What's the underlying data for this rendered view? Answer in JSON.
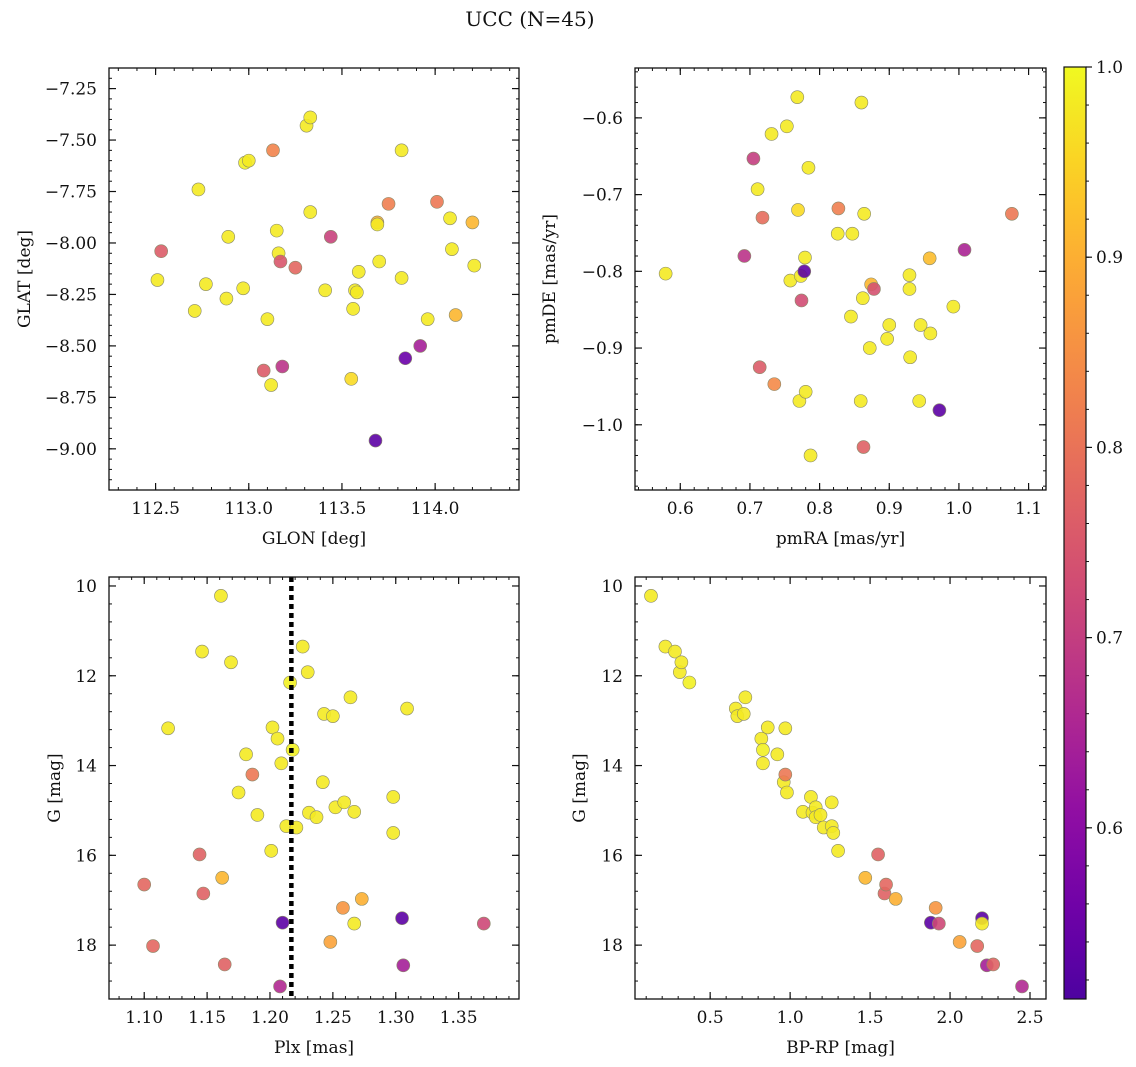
{
  "title": "UCC (N=45)",
  "colorbar": {
    "range": [
      0.51,
      1.0
    ],
    "ticks": [
      0.6,
      0.7,
      0.8,
      0.9,
      1.0
    ],
    "tick_labels": [
      "0.6",
      "0.7",
      "0.8",
      "0.9",
      "1.0"
    ],
    "colormap": "plasma"
  },
  "chart_data": [
    {
      "type": "scatter",
      "id": "glon-glat",
      "xlabel": "GLON [deg]",
      "ylabel": "GLAT [deg]",
      "xlim": [
        112.25,
        114.45
      ],
      "ylim": [
        -9.2,
        -7.15
      ],
      "y_inverted": false,
      "xticks": [
        112.5,
        113.0,
        113.5,
        114.0
      ],
      "xtick_labels": [
        "112.5",
        "113.0",
        "113.5",
        "114.0"
      ],
      "yticks": [
        -7.25,
        -7.5,
        -7.75,
        -8.0,
        -8.25,
        -8.5,
        -8.75,
        -9.0
      ],
      "ytick_labels": [
        "−7.25",
        "−7.50",
        "−7.75",
        "−8.00",
        "−8.25",
        "−8.50",
        "−8.75",
        "−9.00"
      ],
      "points": [
        {
          "x": 112.51,
          "y": -8.18,
          "c": 0.98
        },
        {
          "x": 112.53,
          "y": -8.04,
          "c": 0.76
        },
        {
          "x": 112.71,
          "y": -8.33,
          "c": 0.98
        },
        {
          "x": 112.73,
          "y": -7.74,
          "c": 0.98
        },
        {
          "x": 112.77,
          "y": -8.2,
          "c": 0.98
        },
        {
          "x": 112.88,
          "y": -8.27,
          "c": 0.98
        },
        {
          "x": 112.89,
          "y": -7.97,
          "c": 0.98
        },
        {
          "x": 112.97,
          "y": -8.22,
          "c": 0.98
        },
        {
          "x": 112.98,
          "y": -7.61,
          "c": 0.99
        },
        {
          "x": 113.0,
          "y": -7.6,
          "c": 0.98
        },
        {
          "x": 113.08,
          "y": -8.62,
          "c": 0.76
        },
        {
          "x": 113.1,
          "y": -8.37,
          "c": 0.98
        },
        {
          "x": 113.12,
          "y": -8.69,
          "c": 0.98
        },
        {
          "x": 113.13,
          "y": -7.55,
          "c": 0.83
        },
        {
          "x": 113.15,
          "y": -7.94,
          "c": 0.98
        },
        {
          "x": 113.16,
          "y": -8.05,
          "c": 0.98
        },
        {
          "x": 113.17,
          "y": -8.09,
          "c": 0.75
        },
        {
          "x": 113.18,
          "y": -8.6,
          "c": 0.68
        },
        {
          "x": 113.25,
          "y": -8.12,
          "c": 0.78
        },
        {
          "x": 113.31,
          "y": -7.43,
          "c": 0.98
        },
        {
          "x": 113.33,
          "y": -7.39,
          "c": 0.98
        },
        {
          "x": 113.33,
          "y": -7.85,
          "c": 0.98
        },
        {
          "x": 113.41,
          "y": -8.23,
          "c": 0.98
        },
        {
          "x": 113.44,
          "y": -7.97,
          "c": 0.71
        },
        {
          "x": 113.55,
          "y": -8.66,
          "c": 0.96
        },
        {
          "x": 113.56,
          "y": -8.32,
          "c": 0.98
        },
        {
          "x": 113.57,
          "y": -8.23,
          "c": 0.98
        },
        {
          "x": 113.58,
          "y": -8.24,
          "c": 0.98
        },
        {
          "x": 113.59,
          "y": -8.14,
          "c": 0.98
        },
        {
          "x": 113.68,
          "y": -8.96,
          "c": 0.53
        },
        {
          "x": 113.69,
          "y": -7.9,
          "c": 0.9
        },
        {
          "x": 113.69,
          "y": -7.91,
          "c": 0.98
        },
        {
          "x": 113.7,
          "y": -8.09,
          "c": 0.98
        },
        {
          "x": 113.75,
          "y": -7.81,
          "c": 0.82
        },
        {
          "x": 113.82,
          "y": -7.55,
          "c": 0.98
        },
        {
          "x": 113.82,
          "y": -8.17,
          "c": 0.98
        },
        {
          "x": 113.84,
          "y": -8.56,
          "c": 0.55
        },
        {
          "x": 113.92,
          "y": -8.5,
          "c": 0.64
        },
        {
          "x": 113.96,
          "y": -8.37,
          "c": 0.98
        },
        {
          "x": 114.01,
          "y": -7.8,
          "c": 0.81
        },
        {
          "x": 114.08,
          "y": -7.88,
          "c": 0.98
        },
        {
          "x": 114.09,
          "y": -8.03,
          "c": 0.98
        },
        {
          "x": 114.11,
          "y": -8.35,
          "c": 0.91
        },
        {
          "x": 114.2,
          "y": -7.9,
          "c": 0.91
        },
        {
          "x": 114.21,
          "y": -8.11,
          "c": 0.98
        }
      ]
    },
    {
      "type": "scatter",
      "id": "pmra-pmde",
      "xlabel": "pmRA [mas/yr]",
      "ylabel": "pmDE [mas/yr]",
      "xlim": [
        0.535,
        1.125
      ],
      "ylim": [
        -1.085,
        -0.535
      ],
      "y_inverted": false,
      "xticks": [
        0.6,
        0.7,
        0.8,
        0.9,
        1.0,
        1.1
      ],
      "xtick_labels": [
        "0.6",
        "0.7",
        "0.8",
        "0.9",
        "1.0",
        "1.1"
      ],
      "yticks": [
        -0.6,
        -0.7,
        -0.8,
        -0.9,
        -1.0
      ],
      "ytick_labels": [
        "−0.6",
        "−0.7",
        "−0.8",
        "−0.9",
        "−1.0"
      ],
      "points": [
        {
          "x": 0.579,
          "y": -0.803,
          "c": 0.98
        },
        {
          "x": 0.692,
          "y": -0.78,
          "c": 0.68
        },
        {
          "x": 0.705,
          "y": -0.653,
          "c": 0.7
        },
        {
          "x": 0.711,
          "y": -0.693,
          "c": 0.98
        },
        {
          "x": 0.714,
          "y": -0.925,
          "c": 0.76
        },
        {
          "x": 0.718,
          "y": -0.73,
          "c": 0.79
        },
        {
          "x": 0.731,
          "y": -0.621,
          "c": 0.98
        },
        {
          "x": 0.735,
          "y": -0.947,
          "c": 0.84
        },
        {
          "x": 0.753,
          "y": -0.611,
          "c": 0.98
        },
        {
          "x": 0.758,
          "y": -0.812,
          "c": 0.98
        },
        {
          "x": 0.768,
          "y": -0.573,
          "c": 0.98
        },
        {
          "x": 0.769,
          "y": -0.72,
          "c": 0.96
        },
        {
          "x": 0.771,
          "y": -0.969,
          "c": 0.98
        },
        {
          "x": 0.773,
          "y": -0.806,
          "c": 0.98
        },
        {
          "x": 0.774,
          "y": -0.838,
          "c": 0.73
        },
        {
          "x": 0.778,
          "y": -0.8,
          "c": 0.53
        },
        {
          "x": 0.779,
          "y": -0.782,
          "c": 0.98
        },
        {
          "x": 0.78,
          "y": -0.957,
          "c": 0.98
        },
        {
          "x": 0.784,
          "y": -0.665,
          "c": 0.98
        },
        {
          "x": 0.787,
          "y": -1.04,
          "c": 0.98
        },
        {
          "x": 0.826,
          "y": -0.751,
          "c": 0.98
        },
        {
          "x": 0.827,
          "y": -0.718,
          "c": 0.82
        },
        {
          "x": 0.845,
          "y": -0.859,
          "c": 0.98
        },
        {
          "x": 0.847,
          "y": -0.751,
          "c": 0.98
        },
        {
          "x": 0.859,
          "y": -0.969,
          "c": 0.98
        },
        {
          "x": 0.86,
          "y": -0.58,
          "c": 0.98
        },
        {
          "x": 0.862,
          "y": -0.835,
          "c": 0.98
        },
        {
          "x": 0.863,
          "y": -1.029,
          "c": 0.77
        },
        {
          "x": 0.864,
          "y": -0.725,
          "c": 0.98
        },
        {
          "x": 0.872,
          "y": -0.9,
          "c": 0.98
        },
        {
          "x": 0.874,
          "y": -0.817,
          "c": 0.91
        },
        {
          "x": 0.878,
          "y": -0.823,
          "c": 0.74
        },
        {
          "x": 0.897,
          "y": -0.888,
          "c": 0.98
        },
        {
          "x": 0.9,
          "y": -0.87,
          "c": 0.98
        },
        {
          "x": 0.929,
          "y": -0.805,
          "c": 0.98
        },
        {
          "x": 0.929,
          "y": -0.823,
          "c": 0.98
        },
        {
          "x": 0.93,
          "y": -0.912,
          "c": 0.98
        },
        {
          "x": 0.943,
          "y": -0.969,
          "c": 0.98
        },
        {
          "x": 0.945,
          "y": -0.87,
          "c": 0.98
        },
        {
          "x": 0.958,
          "y": -0.783,
          "c": 0.92
        },
        {
          "x": 0.959,
          "y": -0.881,
          "c": 0.98
        },
        {
          "x": 0.972,
          "y": -0.981,
          "c": 0.53
        },
        {
          "x": 0.992,
          "y": -0.846,
          "c": 0.98
        },
        {
          "x": 1.008,
          "y": -0.772,
          "c": 0.65
        },
        {
          "x": 1.076,
          "y": -0.725,
          "c": 0.81
        }
      ]
    },
    {
      "type": "scatter",
      "id": "plx-g",
      "xlabel": "Plx [mas]",
      "ylabel": "G [mag]",
      "xlim": [
        1.072,
        1.398
      ],
      "ylim": [
        19.2,
        9.8
      ],
      "y_inverted": true,
      "vline": 1.217,
      "xticks": [
        1.1,
        1.15,
        1.2,
        1.25,
        1.3,
        1.35
      ],
      "xtick_labels": [
        "1.10",
        "1.15",
        "1.20",
        "1.25",
        "1.30",
        "1.35"
      ],
      "yticks": [
        10,
        12,
        14,
        16,
        18
      ],
      "ytick_labels": [
        "10",
        "12",
        "14",
        "16",
        "18"
      ],
      "points": [
        {
          "x": 1.1,
          "y": 16.65,
          "c": 0.78
        },
        {
          "x": 1.107,
          "y": 18.02,
          "c": 0.78
        },
        {
          "x": 1.119,
          "y": 13.17,
          "c": 0.98
        },
        {
          "x": 1.144,
          "y": 15.98,
          "c": 0.77
        },
        {
          "x": 1.146,
          "y": 11.46,
          "c": 0.98
        },
        {
          "x": 1.147,
          "y": 16.85,
          "c": 0.77
        },
        {
          "x": 1.161,
          "y": 10.22,
          "c": 0.98
        },
        {
          "x": 1.162,
          "y": 16.5,
          "c": 0.91
        },
        {
          "x": 1.164,
          "y": 18.43,
          "c": 0.77
        },
        {
          "x": 1.169,
          "y": 11.7,
          "c": 0.98
        },
        {
          "x": 1.175,
          "y": 14.6,
          "c": 0.98
        },
        {
          "x": 1.181,
          "y": 13.75,
          "c": 0.98
        },
        {
          "x": 1.186,
          "y": 14.2,
          "c": 0.81
        },
        {
          "x": 1.19,
          "y": 15.1,
          "c": 0.98
        },
        {
          "x": 1.201,
          "y": 15.9,
          "c": 0.98
        },
        {
          "x": 1.202,
          "y": 13.15,
          "c": 0.98
        },
        {
          "x": 1.206,
          "y": 13.4,
          "c": 0.98
        },
        {
          "x": 1.208,
          "y": 18.92,
          "c": 0.66
        },
        {
          "x": 1.209,
          "y": 13.95,
          "c": 0.98
        },
        {
          "x": 1.21,
          "y": 17.5,
          "c": 0.53
        },
        {
          "x": 1.213,
          "y": 15.35,
          "c": 0.98
        },
        {
          "x": 1.216,
          "y": 12.15,
          "c": 0.99
        },
        {
          "x": 1.218,
          "y": 13.65,
          "c": 0.99
        },
        {
          "x": 1.221,
          "y": 15.38,
          "c": 0.98
        },
        {
          "x": 1.226,
          "y": 11.35,
          "c": 0.98
        },
        {
          "x": 1.23,
          "y": 11.92,
          "c": 0.98
        },
        {
          "x": 1.231,
          "y": 15.05,
          "c": 0.98
        },
        {
          "x": 1.237,
          "y": 15.15,
          "c": 0.98
        },
        {
          "x": 1.242,
          "y": 14.37,
          "c": 0.98
        },
        {
          "x": 1.243,
          "y": 12.85,
          "c": 0.98
        },
        {
          "x": 1.248,
          "y": 17.93,
          "c": 0.88
        },
        {
          "x": 1.25,
          "y": 12.9,
          "c": 0.98
        },
        {
          "x": 1.252,
          "y": 14.93,
          "c": 0.98
        },
        {
          "x": 1.258,
          "y": 17.17,
          "c": 0.86
        },
        {
          "x": 1.259,
          "y": 14.82,
          "c": 0.98
        },
        {
          "x": 1.264,
          "y": 12.48,
          "c": 0.98
        },
        {
          "x": 1.267,
          "y": 15.03,
          "c": 0.98
        },
        {
          "x": 1.267,
          "y": 17.52,
          "c": 0.98
        },
        {
          "x": 1.273,
          "y": 16.97,
          "c": 0.9
        },
        {
          "x": 1.298,
          "y": 14.7,
          "c": 0.98
        },
        {
          "x": 1.298,
          "y": 15.5,
          "c": 0.98
        },
        {
          "x": 1.305,
          "y": 17.4,
          "c": 0.53
        },
        {
          "x": 1.306,
          "y": 18.45,
          "c": 0.64
        },
        {
          "x": 1.309,
          "y": 12.73,
          "c": 0.98
        },
        {
          "x": 1.37,
          "y": 17.52,
          "c": 0.72
        }
      ]
    },
    {
      "type": "scatter",
      "id": "bprp-g",
      "xlabel": "BP-RP [mag]",
      "ylabel": "G [mag]",
      "xlim": [
        0.03,
        2.6
      ],
      "ylim": [
        19.2,
        9.8
      ],
      "y_inverted": true,
      "xticks": [
        0.5,
        1.0,
        1.5,
        2.0,
        2.5
      ],
      "xtick_labels": [
        "0.5",
        "1.0",
        "1.5",
        "2.0",
        "2.5"
      ],
      "yticks": [
        10,
        12,
        14,
        16,
        18
      ],
      "ytick_labels": [
        "10",
        "12",
        "14",
        "16",
        "18"
      ],
      "points": [
        {
          "x": 0.13,
          "y": 10.22,
          "c": 0.98
        },
        {
          "x": 0.22,
          "y": 11.35,
          "c": 0.98
        },
        {
          "x": 0.28,
          "y": 11.46,
          "c": 0.98
        },
        {
          "x": 0.31,
          "y": 11.92,
          "c": 0.98
        },
        {
          "x": 0.32,
          "y": 11.7,
          "c": 0.98
        },
        {
          "x": 0.37,
          "y": 12.15,
          "c": 0.99
        },
        {
          "x": 0.66,
          "y": 12.73,
          "c": 0.98
        },
        {
          "x": 0.67,
          "y": 12.9,
          "c": 0.98
        },
        {
          "x": 0.71,
          "y": 12.85,
          "c": 0.98
        },
        {
          "x": 0.72,
          "y": 12.48,
          "c": 0.98
        },
        {
          "x": 0.82,
          "y": 13.4,
          "c": 0.98
        },
        {
          "x": 0.83,
          "y": 13.95,
          "c": 0.98
        },
        {
          "x": 0.83,
          "y": 13.65,
          "c": 0.99
        },
        {
          "x": 0.86,
          "y": 13.15,
          "c": 0.98
        },
        {
          "x": 0.92,
          "y": 13.75,
          "c": 0.98
        },
        {
          "x": 0.96,
          "y": 14.37,
          "c": 0.98
        },
        {
          "x": 0.97,
          "y": 14.2,
          "c": 0.81
        },
        {
          "x": 0.97,
          "y": 13.17,
          "c": 0.98
        },
        {
          "x": 0.98,
          "y": 14.6,
          "c": 0.98
        },
        {
          "x": 1.08,
          "y": 15.03,
          "c": 0.98
        },
        {
          "x": 1.13,
          "y": 14.7,
          "c": 0.98
        },
        {
          "x": 1.14,
          "y": 15.05,
          "c": 0.98
        },
        {
          "x": 1.16,
          "y": 14.93,
          "c": 0.98
        },
        {
          "x": 1.16,
          "y": 15.15,
          "c": 0.98
        },
        {
          "x": 1.19,
          "y": 15.1,
          "c": 0.98
        },
        {
          "x": 1.21,
          "y": 15.38,
          "c": 0.98
        },
        {
          "x": 1.26,
          "y": 14.82,
          "c": 0.98
        },
        {
          "x": 1.26,
          "y": 15.35,
          "c": 0.98
        },
        {
          "x": 1.27,
          "y": 15.5,
          "c": 0.98
        },
        {
          "x": 1.3,
          "y": 15.9,
          "c": 0.98
        },
        {
          "x": 1.47,
          "y": 16.5,
          "c": 0.91
        },
        {
          "x": 1.55,
          "y": 15.98,
          "c": 0.77
        },
        {
          "x": 1.59,
          "y": 16.85,
          "c": 0.77
        },
        {
          "x": 1.6,
          "y": 16.65,
          "c": 0.78
        },
        {
          "x": 1.66,
          "y": 16.97,
          "c": 0.9
        },
        {
          "x": 1.88,
          "y": 17.5,
          "c": 0.53
        },
        {
          "x": 1.91,
          "y": 17.17,
          "c": 0.86
        },
        {
          "x": 1.93,
          "y": 17.52,
          "c": 0.72
        },
        {
          "x": 2.06,
          "y": 17.93,
          "c": 0.88
        },
        {
          "x": 2.17,
          "y": 18.02,
          "c": 0.78
        },
        {
          "x": 2.2,
          "y": 17.4,
          "c": 0.53
        },
        {
          "x": 2.2,
          "y": 17.52,
          "c": 0.98
        },
        {
          "x": 2.23,
          "y": 18.45,
          "c": 0.64
        },
        {
          "x": 2.27,
          "y": 18.43,
          "c": 0.77
        },
        {
          "x": 2.45,
          "y": 18.92,
          "c": 0.66
        }
      ]
    }
  ]
}
